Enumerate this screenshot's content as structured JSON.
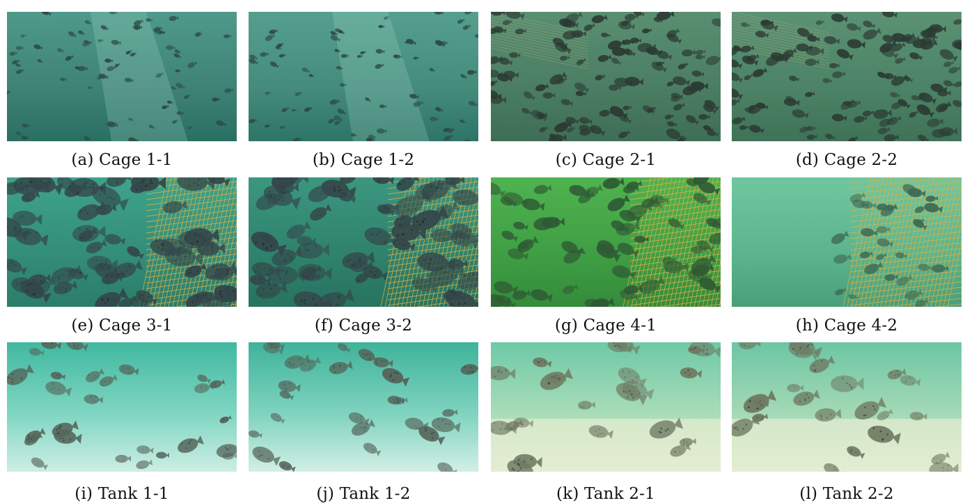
{
  "panels": [
    {
      "caption": "(a) Cage 1-1",
      "scene": "cage-sparse",
      "colors": [
        "#4f9a8a",
        "#3e8275",
        "#2a6f63"
      ]
    },
    {
      "caption": "(b) Cage 1-2",
      "scene": "cage-sparse",
      "colors": [
        "#569f8f",
        "#448b7c",
        "#2e7467"
      ]
    },
    {
      "caption": "(c) Cage 2-1",
      "scene": "cage-dense",
      "colors": [
        "#5a8f72",
        "#4a7d62",
        "#3e6e55"
      ]
    },
    {
      "caption": "(d) Cage 2-2",
      "scene": "cage-dense",
      "colors": [
        "#5c9274",
        "#4c8265",
        "#3f7257"
      ]
    },
    {
      "caption": "(e) Cage 3-1",
      "scene": "cage-net",
      "colors": [
        "#3fa38a",
        "#338d78",
        "#2b7d69"
      ]
    },
    {
      "caption": "(f) Cage 3-2",
      "scene": "cage-net",
      "colors": [
        "#3c9780",
        "#2f826c",
        "#27735f"
      ]
    },
    {
      "caption": "(g) Cage 4-1",
      "scene": "cage-net-green",
      "colors": [
        "#4fb34f",
        "#3f9e44",
        "#348b3a"
      ]
    },
    {
      "caption": "(h) Cage 4-2",
      "scene": "cage-net-pale",
      "colors": [
        "#6fc7a0",
        "#5bb48c",
        "#4a9f79"
      ]
    },
    {
      "caption": "(i) Tank 1-1",
      "scene": "tank",
      "colors": [
        "#42b8a0",
        "#7fd6c2",
        "#cdeee4"
      ]
    },
    {
      "caption": "(j) Tank 1-2",
      "scene": "tank",
      "colors": [
        "#3fb39a",
        "#7fd3bf",
        "#d2efe6"
      ]
    },
    {
      "caption": "(k) Tank 2-1",
      "scene": "tank-floor",
      "colors": [
        "#6ec9a7",
        "#a9dcb9",
        "#e2eed6"
      ]
    },
    {
      "caption": "(l) Tank 2-2",
      "scene": "tank-floor",
      "colors": [
        "#6cc6a4",
        "#a4d9b6",
        "#deeed5"
      ]
    }
  ]
}
